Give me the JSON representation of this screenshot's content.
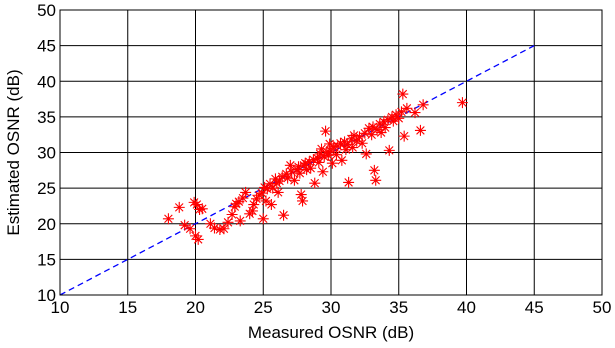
{
  "chart_data": {
    "type": "scatter",
    "xlabel": "Measured OSNR (dB)",
    "ylabel": "Estimated OSNR (dB)",
    "xlim": [
      10,
      50
    ],
    "ylim": [
      10,
      50
    ],
    "xticks": [
      "10",
      "15",
      "20",
      "25",
      "30",
      "35",
      "40",
      "45",
      "50"
    ],
    "yticks": [
      "10",
      "15",
      "20",
      "25",
      "30",
      "35",
      "40",
      "45",
      "50"
    ],
    "grid": true,
    "series": [
      {
        "kind": "scatter",
        "marker": "asterisk",
        "color": "#ff0000",
        "points": [
          [
            18.0,
            20.7
          ],
          [
            18.8,
            22.3
          ],
          [
            19.2,
            19.8
          ],
          [
            19.6,
            19.3
          ],
          [
            19.9,
            23.0
          ],
          [
            20.1,
            22.7
          ],
          [
            20.3,
            22.0
          ],
          [
            20.0,
            18.3
          ],
          [
            20.2,
            17.8
          ],
          [
            20.5,
            22.1
          ],
          [
            21.1,
            20.0
          ],
          [
            21.4,
            19.4
          ],
          [
            21.8,
            19.2
          ],
          [
            22.1,
            19.3
          ],
          [
            22.4,
            20.2
          ],
          [
            22.7,
            21.3
          ],
          [
            22.9,
            22.4
          ],
          [
            23.0,
            22.8
          ],
          [
            23.2,
            23.1
          ],
          [
            23.3,
            20.4
          ],
          [
            23.5,
            23.6
          ],
          [
            23.7,
            24.4
          ],
          [
            24.0,
            21.4
          ],
          [
            24.2,
            21.8
          ],
          [
            24.3,
            22.7
          ],
          [
            24.5,
            23.5
          ],
          [
            24.7,
            24.0
          ],
          [
            24.9,
            24.3
          ],
          [
            25.0,
            20.7
          ],
          [
            25.1,
            25.1
          ],
          [
            25.2,
            23.2
          ],
          [
            25.3,
            24.9
          ],
          [
            25.5,
            25.6
          ],
          [
            25.6,
            22.7
          ],
          [
            25.7,
            25.0
          ],
          [
            25.9,
            26.3
          ],
          [
            26.0,
            25.7
          ],
          [
            26.1,
            24.4
          ],
          [
            26.2,
            26.0
          ],
          [
            26.4,
            26.6
          ],
          [
            26.5,
            21.2
          ],
          [
            26.7,
            27.0
          ],
          [
            26.8,
            26.4
          ],
          [
            27.0,
            28.2
          ],
          [
            27.1,
            27.3
          ],
          [
            27.3,
            26.1
          ],
          [
            27.5,
            27.6
          ],
          [
            27.6,
            28.0
          ],
          [
            27.7,
            27.1
          ],
          [
            27.8,
            24.1
          ],
          [
            27.9,
            23.2
          ],
          [
            28.0,
            28.2
          ],
          [
            28.1,
            28.5
          ],
          [
            28.2,
            27.6
          ],
          [
            28.4,
            28.7
          ],
          [
            28.5,
            27.8
          ],
          [
            28.7,
            29.0
          ],
          [
            28.8,
            25.7
          ],
          [
            29.0,
            29.2
          ],
          [
            29.1,
            28.6
          ],
          [
            29.2,
            29.8
          ],
          [
            29.3,
            30.5
          ],
          [
            29.4,
            27.3
          ],
          [
            29.5,
            29.4
          ],
          [
            29.6,
            33.0
          ],
          [
            29.7,
            30.1
          ],
          [
            29.8,
            29.6
          ],
          [
            29.9,
            31.2
          ],
          [
            30.0,
            30.2
          ],
          [
            30.1,
            28.5
          ],
          [
            30.2,
            30.8
          ],
          [
            30.4,
            29.7
          ],
          [
            30.5,
            30.9
          ],
          [
            30.7,
            31.3
          ],
          [
            30.8,
            28.9
          ],
          [
            31.0,
            31.5
          ],
          [
            31.1,
            30.4
          ],
          [
            31.2,
            31.1
          ],
          [
            31.3,
            25.8
          ],
          [
            31.5,
            31.9
          ],
          [
            31.6,
            30.7
          ],
          [
            31.7,
            32.4
          ],
          [
            31.9,
            31.6
          ],
          [
            32.1,
            32.2
          ],
          [
            32.3,
            31.3
          ],
          [
            32.5,
            32.7
          ],
          [
            32.6,
            29.8
          ],
          [
            32.8,
            33.4
          ],
          [
            33.0,
            32.5
          ],
          [
            33.1,
            33.6
          ],
          [
            33.2,
            27.5
          ],
          [
            33.3,
            26.1
          ],
          [
            33.4,
            33.2
          ],
          [
            33.6,
            34.0
          ],
          [
            33.7,
            32.8
          ],
          [
            33.9,
            34.3
          ],
          [
            34.0,
            33.5
          ],
          [
            34.2,
            34.6
          ],
          [
            34.3,
            30.3
          ],
          [
            34.5,
            35.0
          ],
          [
            34.6,
            34.4
          ],
          [
            34.8,
            35.3
          ],
          [
            35.0,
            34.8
          ],
          [
            35.2,
            35.7
          ],
          [
            35.3,
            38.2
          ],
          [
            35.4,
            32.3
          ],
          [
            35.6,
            36.2
          ],
          [
            36.2,
            35.6
          ],
          [
            36.6,
            33.1
          ],
          [
            36.8,
            36.7
          ],
          [
            39.7,
            37.0
          ]
        ]
      },
      {
        "kind": "line",
        "style": "dashed",
        "color": "#0000ff",
        "points": [
          [
            10,
            10
          ],
          [
            45,
            45
          ]
        ]
      }
    ]
  }
}
